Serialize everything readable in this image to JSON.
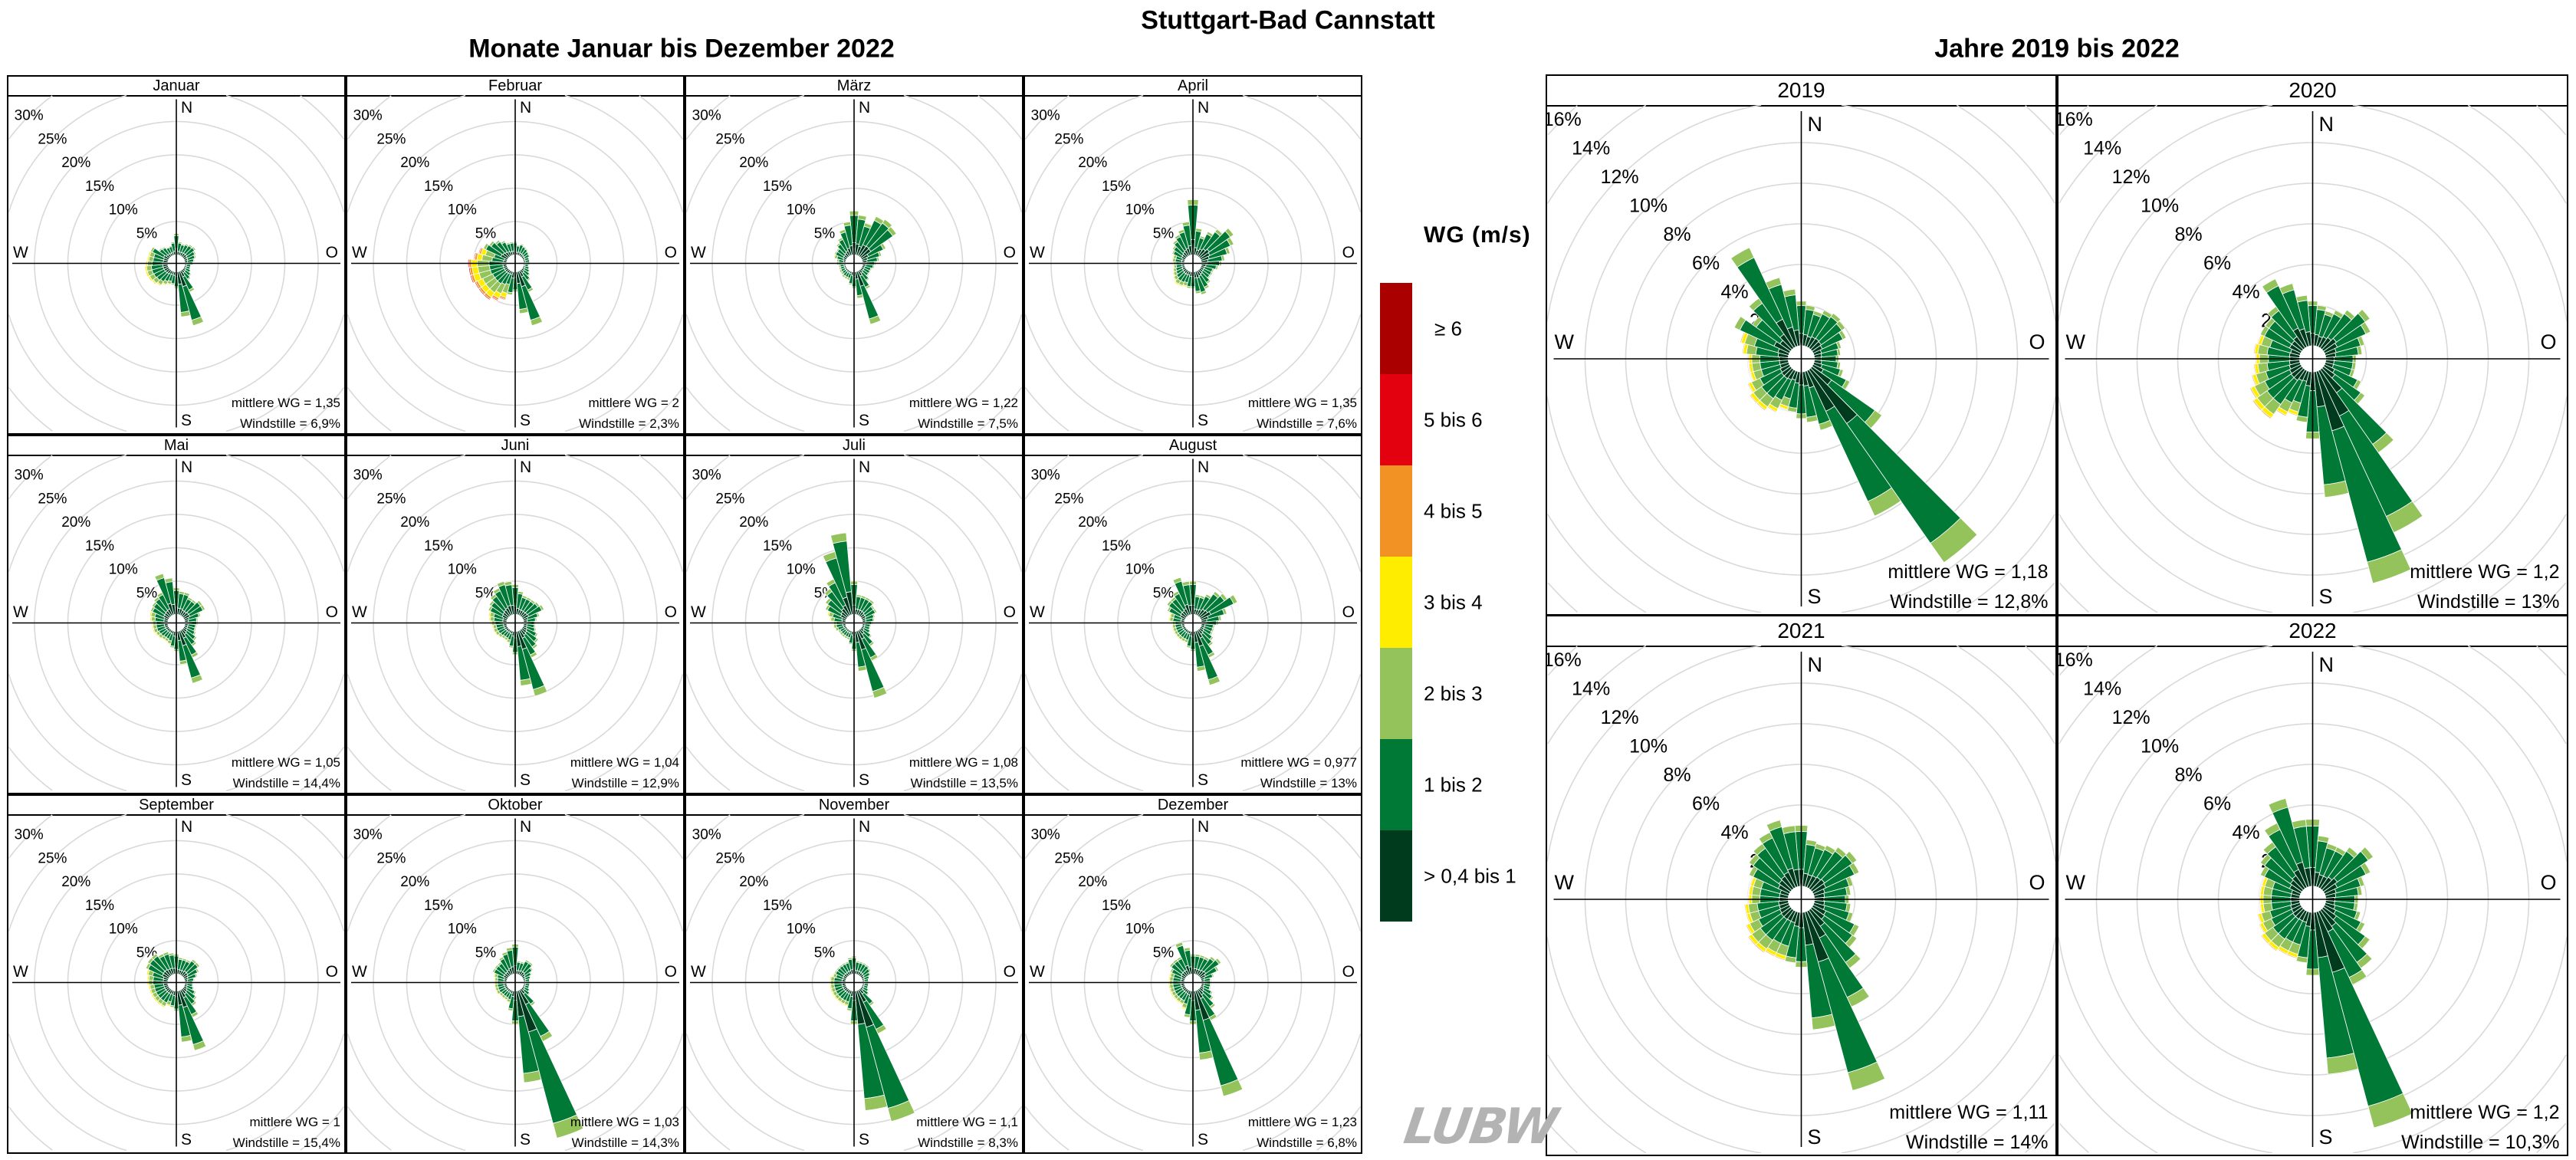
{
  "chart_data": {
    "type": "wind-rose",
    "title": "Stuttgart-Bad Cannstatt",
    "sector_step_deg": 10,
    "compass": {
      "n": "N",
      "o": "O",
      "s": "S",
      "w": "W"
    },
    "legend": {
      "title": "WG (m/s)",
      "placement": "between-groups"
    },
    "speed_classes": [
      {
        "label": "> 0,4 bis 1",
        "color": "#003b1e"
      },
      {
        "label": "1 bis 2",
        "color": "#007836"
      },
      {
        "label": "2 bis 3",
        "color": "#93c35a"
      },
      {
        "label": "3 bis 4",
        "color": "#ffed00"
      },
      {
        "label": "4 bis 5",
        "color": "#f39224"
      },
      {
        "label": "5 bis 6",
        "color": "#e3000f"
      },
      {
        "label": "≥ 6",
        "color": "#aa0000"
      }
    ],
    "share_default": [
      0.28,
      0.62,
      0.1,
      0,
      0,
      0,
      0
    ],
    "share_southwest": [
      0.22,
      0.48,
      0.2,
      0.07,
      0.02,
      0.01,
      0
    ],
    "grid_color": "#d9d9d9",
    "groups": [
      {
        "title": "Monate Januar bis Dezember 2022",
        "ring_labels": [
          "5%",
          "10%",
          "15%",
          "20%",
          "25%",
          "30%"
        ],
        "ring_values": [
          5,
          10,
          15,
          20,
          25,
          30
        ],
        "panels": [
          {
            "label": "Januar",
            "mean_wg": "mittlere WG = 1,35",
            "calm": "Windstille = 6,9%",
            "sector_freq": [
              3.2,
              2,
              1.8,
              2,
              2.2,
              2.3,
              2,
              1.8,
              1.5,
              1.3,
              1,
              1,
              1.2,
              1.5,
              1.8,
              3.5,
              8.4,
              6.8,
              2.5,
              2,
              2.2,
              2.5,
              3,
              3.3,
              3.5,
              3.6,
              3.6,
              3.4,
              3.2,
              3.2,
              3,
              2,
              1.8,
              1.5,
              1.5,
              2
            ]
          },
          {
            "label": "Februar",
            "mean_wg": "mittlere WG = 2",
            "calm": "Windstille = 2,3%",
            "share_southwest": [
              0.1,
              0.35,
              0.3,
              0.15,
              0.06,
              0.03,
              0.01
            ],
            "sector_freq": [
              2,
              1.5,
              1.8,
              1.6,
              1.5,
              1.3,
              1.2,
              1,
              1,
              1,
              0.8,
              1,
              1.2,
              1.5,
              2,
              3.5,
              8.4,
              6.3,
              3,
              3.5,
              4.5,
              5,
              5.5,
              5.5,
              5.5,
              5.8,
              5.8,
              5.9,
              5,
              4.5,
              4,
              3.5,
              3,
              2.5,
              2,
              2
            ]
          },
          {
            "label": "März",
            "mean_wg": "mittlere WG = 1,22",
            "calm": "Windstille = 7,5%",
            "sector_freq": [
              6.6,
              6,
              5,
              6.5,
              6.8,
              6.5,
              4,
              3,
              2.5,
              2,
              1.8,
              1.5,
              1.5,
              1.5,
              2,
              3,
              8.2,
              4,
              2.5,
              2,
              1.5,
              1.5,
              1.5,
              1.3,
              1.3,
              1.2,
              1.2,
              1.5,
              1.5,
              2,
              2,
              2,
              2.5,
              3,
              4,
              5
            ]
          },
          {
            "label": "April",
            "mean_wg": "mittlere WG = 1,35",
            "calm": "Windstille = 7,6%",
            "sector_freq": [
              8.3,
              4,
              3,
              4,
              5,
              6.2,
              5.5,
              4.5,
              3.5,
              3,
              2.5,
              2,
              2,
              2,
              2.5,
              3,
              3.6,
              3.3,
              2.5,
              2.5,
              2.5,
              2.7,
              2.8,
              2.5,
              2.2,
              2,
              1.8,
              1.8,
              2,
              2,
              2.2,
              2.5,
              3,
              3.5,
              4,
              5
            ]
          },
          {
            "label": "Mai",
            "mean_wg": "mittlere WG = 1,05",
            "calm": "Windstille = 14,4%",
            "sector_freq": [
              4,
              3.5,
              3.5,
              3,
              3,
              3.5,
              3.5,
              2.5,
              2,
              2,
              1.8,
              1.8,
              2,
              2.5,
              3,
              4.5,
              8.1,
              5,
              3,
              2.5,
              2.2,
              2,
              2,
              2.2,
              2.3,
              2.5,
              2.5,
              2.5,
              2.8,
              3,
              3,
              3.2,
              3.5,
              3.8,
              6.4,
              5.5
            ]
          },
          {
            "label": "Juni",
            "mean_wg": "mittlere WG = 1,04",
            "calm": "Windstille = 12,9%",
            "sector_freq": [
              4.5,
              3.5,
              3,
              3,
              3,
              3.2,
              3.5,
              2.5,
              2,
              1.8,
              1.8,
              2,
              2.5,
              3,
              3.5,
              4.5,
              10.1,
              8.2,
              3.5,
              2.5,
              2,
              1.8,
              1.8,
              2,
              2.2,
              2.3,
              2.3,
              2.5,
              2.8,
              3,
              3.2,
              3.5,
              4,
              4.5,
              5.2,
              5
            ]
          },
          {
            "label": "Juli",
            "mean_wg": "mittlere WG = 1,08",
            "calm": "Windstille = 13,5%",
            "sector_freq": [
              5,
              3,
              3,
              3,
              3,
              2.5,
              2.5,
              2,
              1.8,
              1.5,
              1.3,
              1.3,
              1.5,
              2,
              3,
              5,
              10.4,
              6,
              3,
              2,
              1.5,
              1.5,
              1.5,
              1.5,
              1.5,
              1.8,
              2,
              2,
              2.5,
              3,
              3.5,
              4,
              5,
              6,
              9.8,
              12.3
            ]
          },
          {
            "label": "August",
            "mean_wg": "mittlere WG = 0,977",
            "calm": "Windstille = 13%",
            "sector_freq": [
              5,
              3,
              3,
              3.5,
              4.5,
              5,
              6.1,
              4,
              3,
              2.5,
              2,
              2,
              2,
              2.5,
              3,
              4.5,
              8.4,
              6,
              3,
              2.5,
              2,
              2,
              2,
              2,
              2,
              2,
              2,
              2,
              2.5,
              2.5,
              3,
              3.5,
              3.5,
              4,
              5.8,
              5
            ]
          },
          {
            "label": "September",
            "mean_wg": "mittlere WG = 1",
            "calm": "Windstille = 15,4%",
            "sector_freq": [
              3,
              2.5,
              2.5,
              2.5,
              3,
              3,
              2.5,
              2,
              1.5,
              1.3,
              1.3,
              1.5,
              2,
              2.5,
              3,
              4.5,
              9.3,
              7.7,
              3,
              2.5,
              2.5,
              3,
              3,
              3,
              3,
              3,
              3,
              3.2,
              3.2,
              3.5,
              3.8,
              4,
              4,
              3.5,
              3.5,
              3.2
            ]
          },
          {
            "label": "Oktober",
            "mean_wg": "mittlere WG = 1,03",
            "calm": "Windstille = 14,3%",
            "sector_freq": [
              4.5,
              2,
              2,
              2.5,
              2.5,
              2,
              1.5,
              1.2,
              1,
              1,
              1,
              1,
              1.2,
              1.5,
              3,
              8.5,
              22.9,
              13.8,
              5,
              3,
              2,
              1.8,
              1.8,
              1.8,
              2,
              2,
              2,
              2,
              2,
              2.2,
              2.5,
              2.5,
              2.5,
              3,
              3.5,
              4
            ]
          },
          {
            "label": "November",
            "mean_wg": "mittlere WG = 1,1",
            "calm": "Windstille = 8,3%",
            "sector_freq": [
              2.7,
              2,
              2,
              2,
              2,
              1.8,
              1.5,
              1.2,
              1,
              1,
              1,
              1,
              1.2,
              1.5,
              3,
              7.2,
              20.3,
              18,
              5,
              3,
              2.5,
              2.5,
              2.5,
              2.5,
              2.5,
              2.5,
              2.5,
              2.5,
              2.5,
              2.2,
              2,
              2,
              2,
              2,
              2,
              2.5
            ]
          },
          {
            "label": "Dezember",
            "mean_wg": "mittlere WG = 1,23",
            "calm": "Windstille = 6,8%",
            "sector_freq": [
              3,
              3,
              3,
              3,
              3.5,
              3.9,
              3,
              2,
              1.5,
              1.5,
              1.5,
              1.5,
              2,
              2.5,
              3.5,
              5,
              16.4,
              10.4,
              5,
              4,
              3,
              2.5,
              2.5,
              2.5,
              2.5,
              2.5,
              2.5,
              2.5,
              2.5,
              2.5,
              2.5,
              3,
              3,
              3,
              5,
              4
            ]
          }
        ]
      },
      {
        "title": "Jahre 2019 bis 2022",
        "ring_labels": [
          "2%",
          "4%",
          "6%",
          "8%",
          "10%",
          "12%",
          "14%",
          "16%"
        ],
        "ring_values": [
          2,
          4,
          6,
          8,
          10,
          12,
          14,
          16
        ],
        "panels": [
          {
            "label": "2019",
            "mean_wg": "mittlere WG = 1,18",
            "calm": "Windstille = 12,8%",
            "sector_freq": [
              2.2,
              2,
              1.8,
              2,
              2.1,
              2,
              1.8,
              1.4,
              1.3,
              1.2,
              1.3,
              1.5,
              2,
              4.2,
              11.6,
              7.9,
              3,
              2.5,
              2.3,
              2,
              2,
              2.3,
              2.5,
              2.5,
              2.3,
              2,
              2,
              2,
              2.3,
              2.5,
              3,
              2.3,
              3,
              5.4,
              3.5,
              2.8
            ]
          },
          {
            "label": "2020",
            "mean_wg": "mittlere WG = 1,2",
            "calm": "Windstille = 13%",
            "sector_freq": [
              2.2,
              2,
              1.8,
              2,
              2.3,
              2.8,
              2.5,
              2,
              1.8,
              1.5,
              1.5,
              1.5,
              2,
              2.5,
              5,
              8.8,
              10.8,
              6.2,
              3.3,
              2.5,
              2.3,
              2.5,
              3,
              3,
              2.8,
              2.5,
              2.3,
              2.2,
              2.3,
              2.2,
              2.2,
              2.2,
              2.5,
              3.7,
              3.2,
              2.5
            ]
          },
          {
            "label": "2021",
            "mean_wg": "mittlere WG = 1,11",
            "calm": "Windstille = 14%",
            "sector_freq": [
              3,
              2.3,
              2.2,
              2.3,
              2.5,
              2.7,
              2.5,
              2,
              1.8,
              1.7,
              1.8,
              2,
              2.5,
              2.7,
              3.5,
              5.2,
              9.1,
              5.8,
              2.7,
              2.5,
              2.5,
              2.5,
              2.6,
              2.6,
              2.4,
              2.2,
              2.2,
              2,
              2,
              2,
              2.2,
              2.5,
              2.7,
              3,
              3.4,
              3
            ]
          },
          {
            "label": "2022",
            "mean_wg": "mittlere WG = 1,2",
            "calm": "Windstille = 10,3%",
            "sector_freq": [
              3.3,
              2.5,
              2.2,
              2.2,
              2.5,
              3,
              2.5,
              2,
              1.8,
              1.6,
              1.6,
              1.8,
              2.2,
              2.8,
              3.5,
              4,
              11,
              8,
              3.1,
              2.5,
              2.4,
              2.4,
              2.5,
              2.5,
              2.3,
              2.2,
              2,
              2,
              2,
              2,
              2.2,
              2.5,
              2.8,
              3.5,
              4.5,
              3.3
            ]
          }
        ]
      }
    ]
  },
  "logo": {
    "text": "LUBW"
  }
}
